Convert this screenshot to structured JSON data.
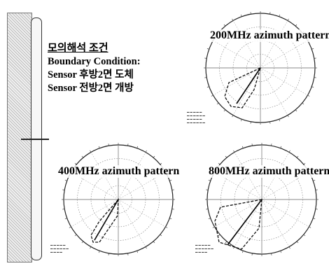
{
  "conditions": {
    "heading": "모의해석 조건",
    "lines": [
      "Boundary Condition:",
      "Sensor 후방2면 도체",
      "Sensor 전방2면 개방"
    ]
  },
  "plots": [
    {
      "title": "200MHz  azimuth pattern"
    },
    {
      "title": "400MHz  azimuth pattern"
    },
    {
      "title": "800MHz  azimuth pattern"
    }
  ]
}
